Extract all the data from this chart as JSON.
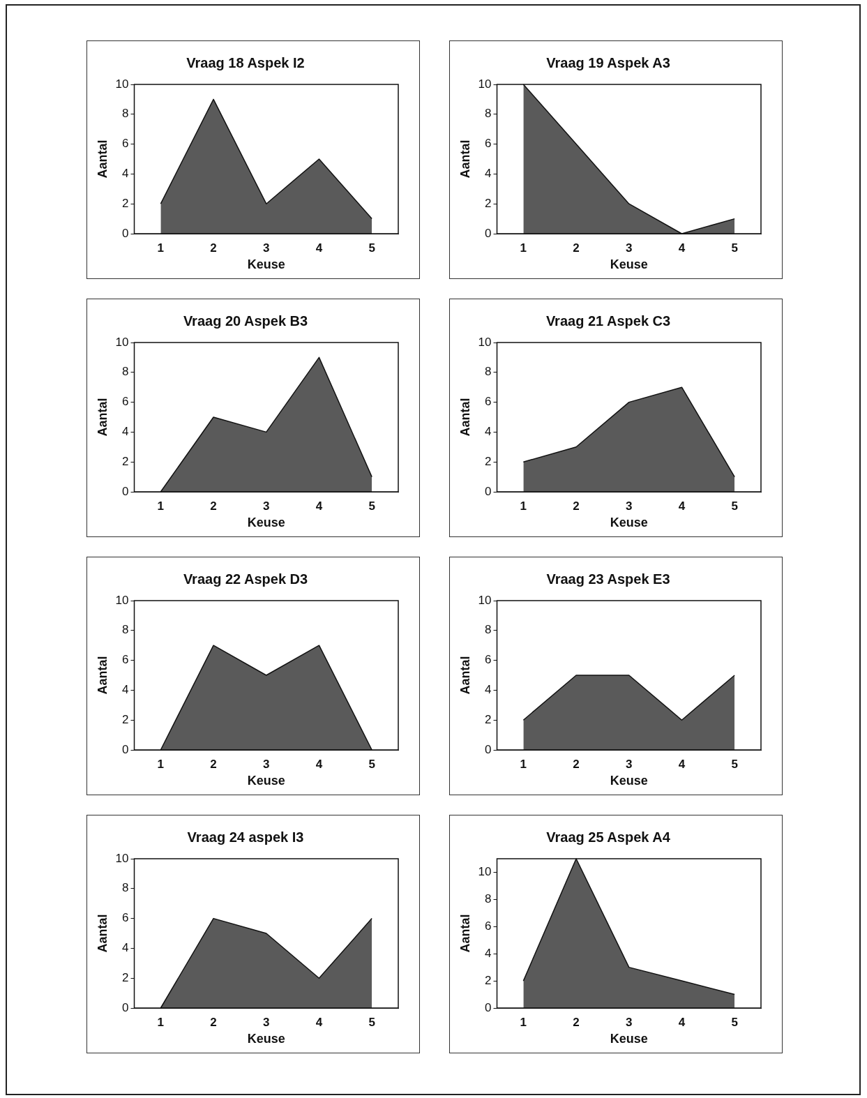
{
  "chart_data": [
    {
      "type": "area",
      "title": "Vraag 18 Aspek I2",
      "xlabel": "Keuse",
      "ylabel": "Aantal",
      "categories": [
        "1",
        "2",
        "3",
        "4",
        "5"
      ],
      "values": [
        2,
        9,
        2,
        5,
        1
      ],
      "color": "#5a5a5a",
      "ylim": [
        0,
        10
      ],
      "yticks": [
        0,
        2,
        4,
        6,
        8,
        10
      ]
    },
    {
      "type": "area",
      "title": "Vraag 19 Aspek A3",
      "xlabel": "Keuse",
      "ylabel": "Aantal",
      "categories": [
        "1",
        "2",
        "3",
        "4",
        "5"
      ],
      "values": [
        10,
        6,
        2,
        0,
        1
      ],
      "color": "#5a5a5a",
      "ylim": [
        0,
        10
      ],
      "yticks": [
        0,
        2,
        4,
        6,
        8,
        10
      ]
    },
    {
      "type": "area",
      "title": "Vraag 20 Aspek B3",
      "xlabel": "Keuse",
      "ylabel": "Aantal",
      "categories": [
        "1",
        "2",
        "3",
        "4",
        "5"
      ],
      "values": [
        0,
        5,
        4,
        9,
        1
      ],
      "color": "#5a5a5a",
      "ylim": [
        0,
        10
      ],
      "yticks": [
        0,
        2,
        4,
        6,
        8,
        10
      ]
    },
    {
      "type": "area",
      "title": "Vraag 21 Aspek C3",
      "xlabel": "Keuse",
      "ylabel": "Aantal",
      "categories": [
        "1",
        "2",
        "3",
        "4",
        "5"
      ],
      "values": [
        2,
        3,
        6,
        7,
        1
      ],
      "color": "#5a5a5a",
      "ylim": [
        0,
        10
      ],
      "yticks": [
        0,
        2,
        4,
        6,
        8,
        10
      ]
    },
    {
      "type": "area",
      "title": "Vraag 22 Aspek D3",
      "xlabel": "Keuse",
      "ylabel": "Aantal",
      "categories": [
        "1",
        "2",
        "3",
        "4",
        "5"
      ],
      "values": [
        0,
        7,
        5,
        7,
        0
      ],
      "color": "#5a5a5a",
      "ylim": [
        0,
        10
      ],
      "yticks": [
        0,
        2,
        4,
        6,
        8,
        10
      ]
    },
    {
      "type": "area",
      "title": "Vraag 23 Aspek E3",
      "xlabel": "Keuse",
      "ylabel": "Aantal",
      "categories": [
        "1",
        "2",
        "3",
        "4",
        "5"
      ],
      "values": [
        2,
        5,
        5,
        2,
        5
      ],
      "color": "#5a5a5a",
      "ylim": [
        0,
        10
      ],
      "yticks": [
        0,
        2,
        4,
        6,
        8,
        10
      ]
    },
    {
      "type": "area",
      "title": "Vraag 24 aspek I3",
      "xlabel": "Keuse",
      "ylabel": "Aantal",
      "categories": [
        "1",
        "2",
        "3",
        "4",
        "5"
      ],
      "values": [
        0,
        6,
        5,
        2,
        6
      ],
      "color": "#5a5a5a",
      "ylim": [
        0,
        10
      ],
      "yticks": [
        0,
        2,
        4,
        6,
        8,
        10
      ]
    },
    {
      "type": "area",
      "title": "Vraag 25 Aspek A4",
      "xlabel": "Keuse",
      "ylabel": "Aantal",
      "categories": [
        "1",
        "2",
        "3",
        "4",
        "5"
      ],
      "values": [
        2,
        11,
        3,
        2,
        1
      ],
      "color": "#5a5a5a",
      "ylim": [
        0,
        11
      ],
      "yticks": [
        0,
        2,
        4,
        6,
        8,
        10
      ]
    }
  ]
}
